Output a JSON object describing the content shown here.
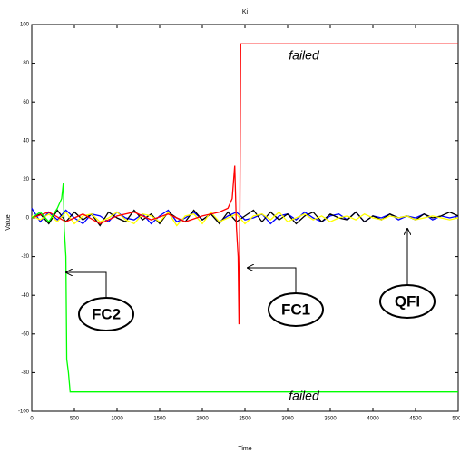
{
  "chart_data": {
    "type": "line",
    "title": "Ki",
    "x_label": "Time",
    "y_label": "Value",
    "xlim": [
      0,
      5000
    ],
    "ylim": [
      -100,
      100
    ],
    "xticks": [
      0,
      500,
      1000,
      1500,
      2000,
      2500,
      3000,
      3500,
      4000,
      4500,
      5000
    ],
    "yticks": [
      -100,
      -80,
      -60,
      -40,
      -20,
      0,
      20,
      40,
      60,
      80,
      100
    ],
    "grid": false,
    "x": [
      0,
      100,
      200,
      300,
      400,
      500,
      600,
      700,
      800,
      900,
      1000,
      1100,
      1200,
      1300,
      1400,
      1500,
      1600,
      1700,
      1800,
      1900,
      2000,
      2100,
      2200,
      2300,
      2400,
      2500,
      2600,
      2700,
      2800,
      2900,
      3000,
      3100,
      3200,
      3300,
      3400,
      3500,
      3600,
      3700,
      3800,
      3900,
      4000,
      4100,
      4200,
      4300,
      4400,
      4500,
      4600,
      4700,
      4800,
      4900,
      5000
    ],
    "series": [
      {
        "color": "#0000ff",
        "values": [
          5,
          -2,
          3,
          -1,
          4,
          0,
          -3,
          2,
          1,
          -2,
          3,
          0,
          -1,
          2,
          -3,
          1,
          4,
          -2,
          0,
          3,
          -1,
          2,
          -2,
          1,
          3,
          -1,
          0,
          2,
          -3,
          1,
          2,
          -1,
          3,
          0,
          -2,
          1,
          2,
          -1,
          3,
          -2,
          1,
          0,
          2,
          -1,
          1,
          0,
          2,
          -1,
          1,
          0,
          1
        ]
      },
      {
        "color": "#000000",
        "values": [
          0,
          2,
          -3,
          4,
          -2,
          3,
          -1,
          2,
          -4,
          3,
          0,
          -2,
          4,
          -1,
          2,
          -3,
          3,
          0,
          -2,
          4,
          -1,
          2,
          -3,
          3,
          -2,
          1,
          4,
          -2,
          3,
          -1,
          2,
          -3,
          1,
          3,
          -2,
          2,
          0,
          -1,
          3,
          -2,
          1,
          -1,
          2,
          0,
          1,
          -1,
          2,
          0,
          1,
          3,
          1
        ]
      },
      {
        "color": "#ffff00",
        "values": [
          1,
          -1,
          2,
          -2,
          3,
          -3,
          1,
          2,
          -2,
          0,
          3,
          -1,
          -3,
          2,
          1,
          -2,
          3,
          -4,
          1,
          2,
          -3,
          3,
          -2,
          0,
          2,
          -3,
          1,
          2,
          -1,
          3,
          -2,
          0,
          2,
          -1,
          1,
          -2,
          0,
          1,
          -1,
          2,
          0,
          -1,
          1,
          0,
          1,
          -1,
          0,
          1,
          0,
          -1,
          0
        ]
      },
      {
        "color": "#ff0000",
        "x": [
          0,
          200,
          400,
          600,
          800,
          1000,
          1200,
          1400,
          1600,
          1800,
          2000,
          2200,
          2300,
          2350,
          2380,
          2400,
          2420,
          2430,
          2440,
          2450,
          5000
        ],
        "values": [
          0,
          3,
          -2,
          2,
          -3,
          1,
          3,
          -1,
          2,
          -2,
          1,
          3,
          5,
          10,
          27,
          -5,
          -20,
          -55,
          0,
          90,
          90
        ]
      },
      {
        "color": "#00ff00",
        "x": [
          0,
          100,
          200,
          300,
          350,
          370,
          380,
          400,
          410,
          430,
          450,
          5000
        ],
        "values": [
          0,
          3,
          -2,
          5,
          10,
          18,
          -5,
          -20,
          -73,
          -80,
          -90,
          -90
        ]
      }
    ],
    "annotations": [
      "failed",
      "failed",
      "FC2",
      "FC1",
      "QFI"
    ]
  }
}
